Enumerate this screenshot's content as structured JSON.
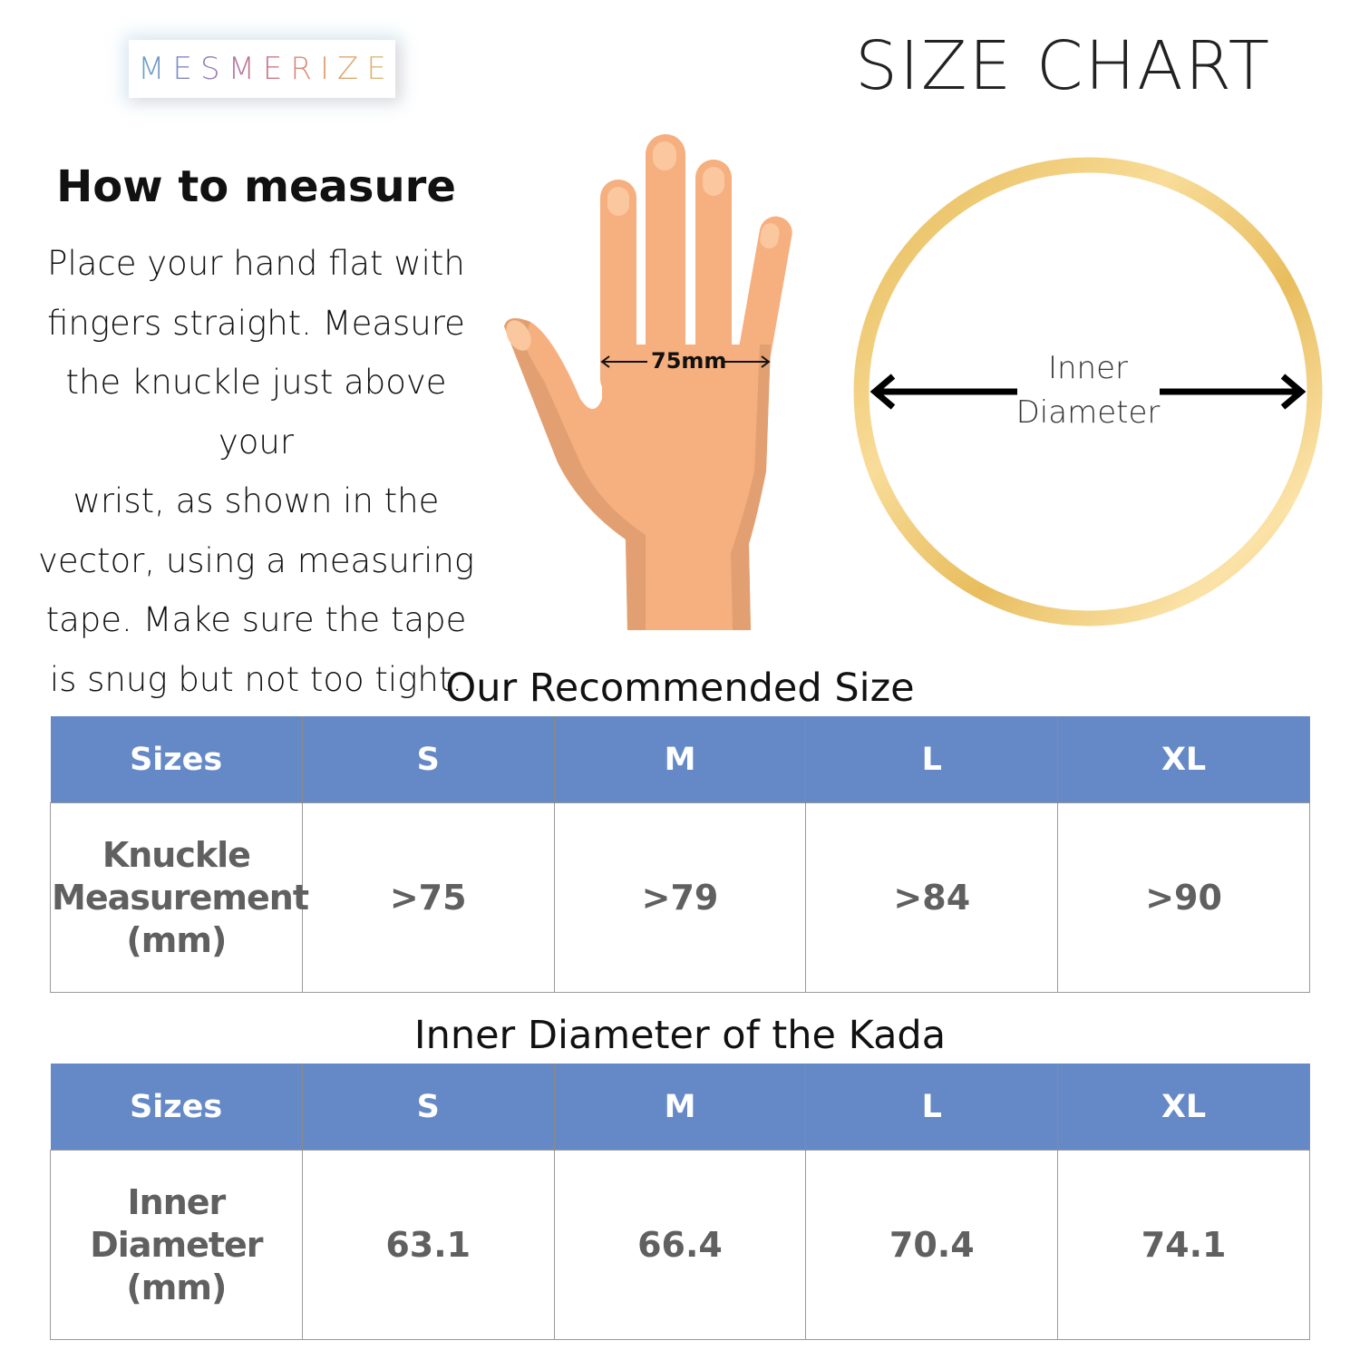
{
  "brand": {
    "logo_text": "MESMERIZE"
  },
  "header": {
    "title": "SIZE CHART"
  },
  "instructions": {
    "heading": "How to measure",
    "lines": [
      "Place your hand flat with",
      "fingers straight. Measure",
      "the knuckle just above your",
      "wrist, as shown in the",
      "vector, using a measuring",
      "tape. Make sure the tape",
      "is snug but not too tight."
    ]
  },
  "hand_illustration": {
    "measure_label": "75mm",
    "skin_color": "#f6af7e",
    "shadow_color": "#e2a072"
  },
  "ring_illustration": {
    "label_line1": "Inner",
    "label_line2": "Diameter",
    "ring_color": "#e9c063"
  },
  "tables": [
    {
      "title": "Our Recommended Size",
      "headers": [
        "Sizes",
        "S",
        "M",
        "L",
        "XL"
      ],
      "row_label": [
        "Knuckle",
        "Measurement",
        "(mm)"
      ],
      "values": [
        ">75",
        ">79",
        ">84",
        ">90"
      ]
    },
    {
      "title": "Inner Diameter of the Kada",
      "headers": [
        "Sizes",
        "S",
        "M",
        "L",
        "XL"
      ],
      "row_label": [
        "Inner",
        "Diameter",
        "(mm)"
      ],
      "values": [
        "63.1",
        "66.4",
        "70.4",
        "74.1"
      ]
    }
  ],
  "colors": {
    "header_bg": "#6589c6",
    "header_text": "#ffffff",
    "cell_text": "#606060"
  }
}
